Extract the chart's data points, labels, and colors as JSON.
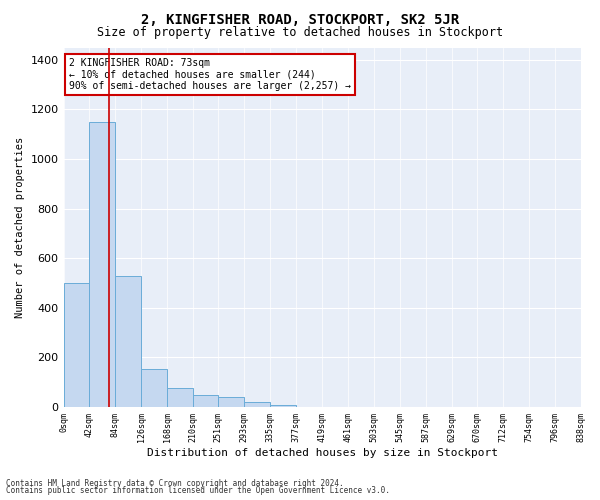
{
  "title": "2, KINGFISHER ROAD, STOCKPORT, SK2 5JR",
  "subtitle": "Size of property relative to detached houses in Stockport",
  "xlabel": "Distribution of detached houses by size in Stockport",
  "ylabel": "Number of detached properties",
  "footer_line1": "Contains HM Land Registry data © Crown copyright and database right 2024.",
  "footer_line2": "Contains public sector information licensed under the Open Government Licence v3.0.",
  "annotation_title": "2 KINGFISHER ROAD: 73sqm",
  "annotation_line2": "← 10% of detached houses are smaller (244)",
  "annotation_line3": "90% of semi-detached houses are larger (2,257) →",
  "property_line_x": 73,
  "bar_edges": [
    0,
    42,
    84,
    126,
    168,
    210,
    251,
    293,
    335,
    377,
    419,
    461,
    503,
    545,
    587,
    629,
    670,
    712,
    754,
    796,
    838
  ],
  "bar_heights": [
    500,
    1150,
    530,
    155,
    75,
    50,
    40,
    20,
    10,
    0,
    0,
    0,
    0,
    0,
    0,
    0,
    0,
    0,
    0,
    0
  ],
  "bar_color": "#c5d8f0",
  "bar_edgecolor": "#6aacd8",
  "line_color": "#cc0000",
  "background_color": "#e8eef8",
  "annotation_box_color": "#ffffff",
  "annotation_box_edgecolor": "#cc0000",
  "ylim": [
    0,
    1450
  ],
  "yticks": [
    0,
    200,
    400,
    600,
    800,
    1000,
    1200,
    1400
  ],
  "tick_labels": [
    "0sqm",
    "42sqm",
    "84sqm",
    "126sqm",
    "168sqm",
    "210sqm",
    "251sqm",
    "293sqm",
    "335sqm",
    "377sqm",
    "419sqm",
    "461sqm",
    "503sqm",
    "545sqm",
    "587sqm",
    "629sqm",
    "670sqm",
    "712sqm",
    "754sqm",
    "796sqm",
    "838sqm"
  ]
}
